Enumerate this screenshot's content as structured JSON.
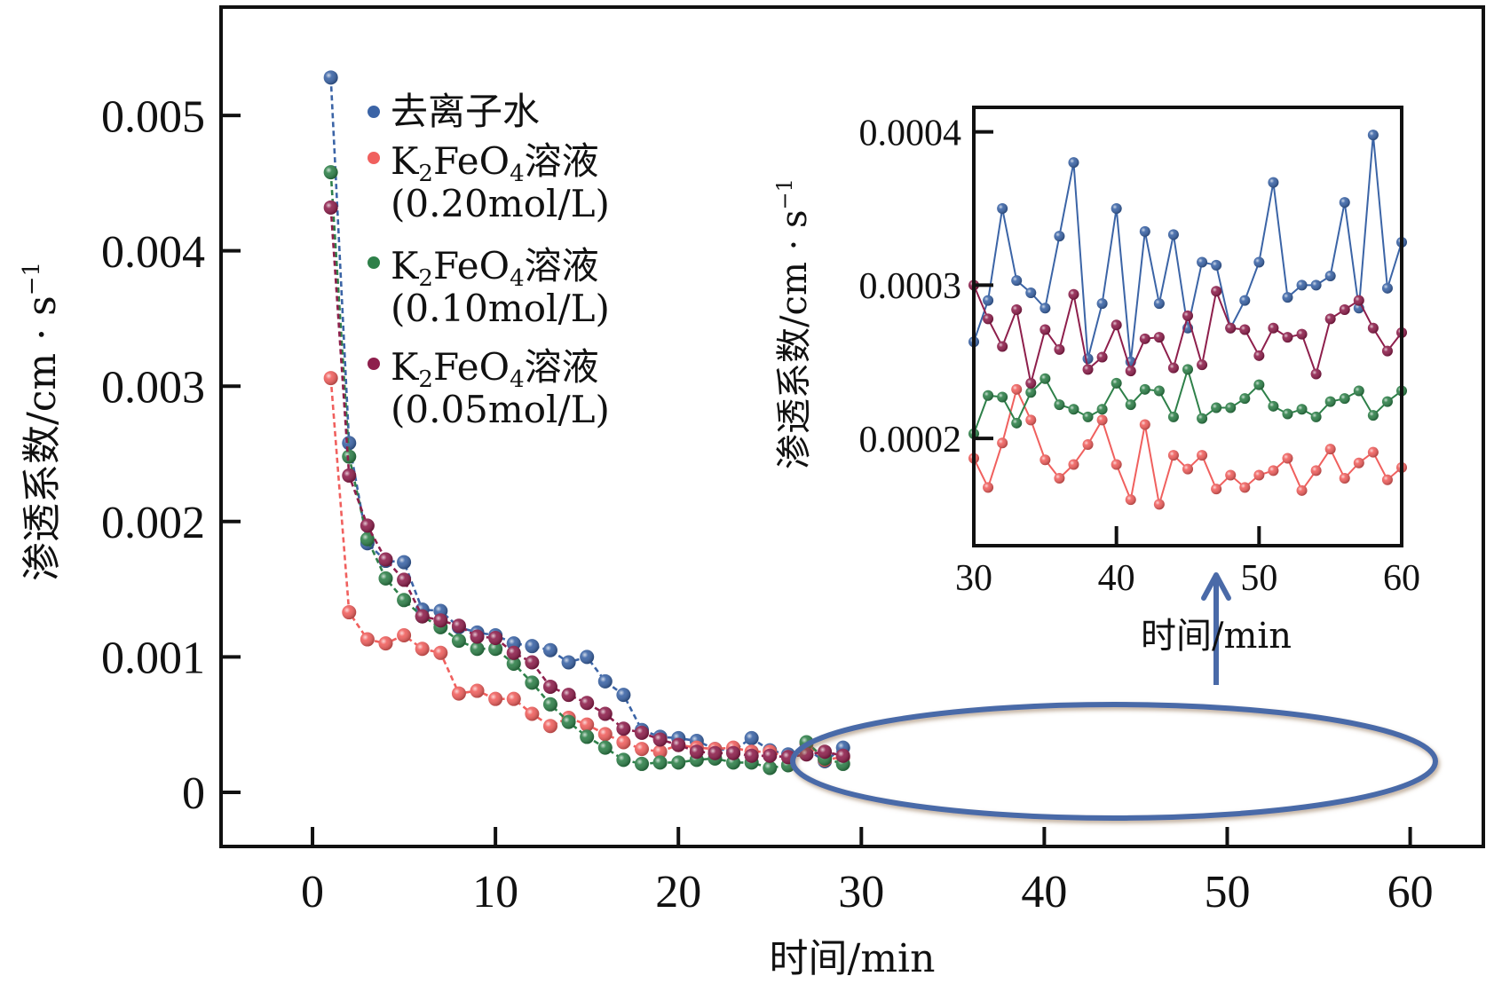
{
  "chart_data": [
    {
      "id": "main",
      "type": "line",
      "title": "",
      "xlabel": "时间/min",
      "ylabel": "渗透系数/cm · s⁻¹",
      "ylabel_parts": {
        "base": "渗透系数/cm · s",
        "sup": "−1"
      },
      "xlim": [
        -5,
        64
      ],
      "ylim": [
        -0.0004,
        0.0058
      ],
      "xticks": [
        0,
        10,
        20,
        30,
        40,
        50,
        60
      ],
      "xtick_labels": [
        "0",
        "10",
        "20",
        "30",
        "40",
        "50",
        "60"
      ],
      "yticks": [
        0,
        0.001,
        0.002,
        0.003,
        0.004,
        0.005
      ],
      "ytick_labels": [
        "0",
        "0.001",
        "0.002",
        "0.003",
        "0.004",
        "0.005"
      ],
      "grid": false,
      "legend_placement": "top-left",
      "annotation": "ellipse highlighting 30–60 min region with arrow pointing to inset",
      "series": [
        {
          "name": "去离子水",
          "name_parts": {
            "main": "去离子水"
          },
          "color": "#3b64a6",
          "line_style": "dashed",
          "x": [
            1,
            2,
            3,
            4,
            5,
            6,
            7,
            8,
            9,
            10,
            11,
            12,
            13,
            14,
            15,
            16,
            17,
            18,
            19,
            20,
            21,
            22,
            23,
            24,
            25,
            26,
            27,
            28,
            29
          ],
          "y": [
            0.00528,
            0.00258,
            0.00184,
            0.00171,
            0.0017,
            0.00135,
            0.00134,
            0.00122,
            0.00118,
            0.00116,
            0.0011,
            0.00108,
            0.00105,
            0.00096,
            0.001,
            0.00082,
            0.00072,
            0.00046,
            0.00041,
            0.0004,
            0.00038,
            0.00032,
            0.00031,
            0.0004,
            0.00031,
            0.00028,
            0.00032,
            0.00023,
            0.00033
          ]
        },
        {
          "name": "K2FeO4溶液 (0.20mol/L)",
          "name_parts": {
            "pre": "K",
            "sub1": "2",
            "mid": "FeO",
            "sub2": "4",
            "post": "溶液",
            "line2": "(0.20mol/L)"
          },
          "color": "#f0605e",
          "line_style": "dashed",
          "x": [
            1,
            2,
            3,
            4,
            5,
            6,
            7,
            8,
            9,
            10,
            11,
            12,
            13,
            14,
            15,
            16,
            17,
            18,
            19,
            20,
            21,
            22,
            23,
            24,
            25,
            26,
            27,
            28,
            29
          ],
          "y": [
            0.00306,
            0.00133,
            0.00113,
            0.0011,
            0.00116,
            0.00106,
            0.00103,
            0.00073,
            0.00075,
            0.00069,
            0.00069,
            0.00058,
            0.00049,
            0.00055,
            0.0005,
            0.00043,
            0.00037,
            0.00032,
            0.0003,
            0.00035,
            0.00033,
            0.00032,
            0.00033,
            0.0003,
            0.0003,
            0.00026,
            0.00036,
            0.00024,
            0.00026
          ]
        },
        {
          "name": "K2FeO4溶液 (0.10mol/L)",
          "name_parts": {
            "pre": "K",
            "sub1": "2",
            "mid": "FeO",
            "sub2": "4",
            "post": "溶液",
            "line2": "(0.10mol/L)"
          },
          "color": "#2e8049",
          "line_style": "dashed",
          "x": [
            1,
            2,
            3,
            4,
            5,
            6,
            7,
            8,
            9,
            10,
            11,
            12,
            13,
            14,
            15,
            16,
            17,
            18,
            19,
            20,
            21,
            22,
            23,
            24,
            25,
            26,
            27,
            28,
            29
          ],
          "y": [
            0.00458,
            0.00248,
            0.00187,
            0.00158,
            0.00142,
            0.0013,
            0.00122,
            0.00112,
            0.00106,
            0.00106,
            0.00095,
            0.00081,
            0.00065,
            0.00052,
            0.00041,
            0.00033,
            0.00024,
            0.00021,
            0.00022,
            0.00022,
            0.00024,
            0.00025,
            0.00022,
            0.00022,
            0.00018,
            0.0002,
            0.00037,
            0.00025,
            0.00021
          ]
        },
        {
          "name": "K2FeO4溶液 (0.05mol/L)",
          "name_parts": {
            "pre": "K",
            "sub1": "2",
            "mid": "FeO",
            "sub2": "4",
            "post": "溶液",
            "line2": "(0.05mol/L)"
          },
          "color": "#8e1f4c",
          "line_style": "dashed",
          "x": [
            1,
            2,
            3,
            4,
            5,
            6,
            7,
            8,
            9,
            10,
            11,
            12,
            13,
            14,
            15,
            16,
            17,
            18,
            19,
            20,
            21,
            22,
            23,
            24,
            25,
            26,
            27,
            28,
            29
          ],
          "y": [
            0.00432,
            0.00234,
            0.00197,
            0.00172,
            0.00157,
            0.0013,
            0.00127,
            0.00123,
            0.00115,
            0.00114,
            0.00103,
            0.00096,
            0.00078,
            0.00072,
            0.00066,
            0.00058,
            0.00047,
            0.00044,
            0.00039,
            0.00035,
            0.0003,
            0.00029,
            0.00029,
            0.00027,
            0.00027,
            0.00026,
            0.00028,
            0.0003,
            0.00027
          ]
        }
      ]
    },
    {
      "id": "inset",
      "type": "line",
      "title": "",
      "xlabel": "时间/min",
      "ylabel": "渗透系数/cm · s⁻¹",
      "ylabel_parts": {
        "base": "渗透系数/cm · s",
        "sup": "−1"
      },
      "xlim": [
        30,
        60
      ],
      "ylim": [
        0.00013,
        0.000416
      ],
      "xticks": [
        30,
        40,
        50,
        60
      ],
      "xtick_labels": [
        "30",
        "40",
        "50",
        "60"
      ],
      "yticks": [
        0.0002,
        0.0003,
        0.0004
      ],
      "ytick_labels": [
        "0.0002",
        "0.0003",
        "0.0004"
      ],
      "grid": false,
      "series": [
        {
          "name": "去离子水",
          "color": "#3b64a6",
          "x": [
            30,
            31,
            32,
            33,
            34,
            35,
            36,
            37,
            38,
            39,
            40,
            41,
            42,
            43,
            44,
            45,
            46,
            47,
            48,
            49,
            50,
            51,
            52,
            53,
            54,
            55,
            56,
            57,
            58,
            59,
            60
          ],
          "y": [
            0.000263,
            0.00029,
            0.00035,
            0.000303,
            0.000295,
            0.000285,
            0.000332,
            0.00038,
            0.000252,
            0.000288,
            0.00035,
            0.00025,
            0.000335,
            0.000288,
            0.000333,
            0.000272,
            0.000315,
            0.000313,
            0.000272,
            0.00029,
            0.000315,
            0.000367,
            0.000292,
            0.0003,
            0.0003,
            0.000306,
            0.000354,
            0.000285,
            0.000398,
            0.000298,
            0.000328
          ]
        },
        {
          "name": "K2FeO4溶液 (0.20mol/L)",
          "color": "#f0605e",
          "x": [
            30,
            31,
            32,
            33,
            34,
            35,
            36,
            37,
            38,
            39,
            40,
            41,
            42,
            43,
            44,
            45,
            46,
            47,
            48,
            49,
            50,
            51,
            52,
            53,
            54,
            55,
            56,
            57,
            58,
            59,
            60
          ],
          "y": [
            0.000187,
            0.000168,
            0.000197,
            0.000232,
            0.000212,
            0.000186,
            0.000174,
            0.000183,
            0.000196,
            0.000212,
            0.000183,
            0.00016,
            0.000209,
            0.000157,
            0.000189,
            0.00018,
            0.000189,
            0.000167,
            0.000176,
            0.000168,
            0.000176,
            0.000179,
            0.000187,
            0.000166,
            0.000179,
            0.000193,
            0.000174,
            0.000184,
            0.000191,
            0.000173,
            0.000181
          ]
        },
        {
          "name": "K2FeO4溶液 (0.10mol/L)",
          "color": "#2e8049",
          "x": [
            30,
            31,
            32,
            33,
            34,
            35,
            36,
            37,
            38,
            39,
            40,
            41,
            42,
            43,
            44,
            45,
            46,
            47,
            48,
            49,
            50,
            51,
            52,
            53,
            54,
            55,
            56,
            57,
            58,
            59,
            60
          ],
          "y": [
            0.000203,
            0.000228,
            0.000227,
            0.00021,
            0.00023,
            0.000239,
            0.000222,
            0.000219,
            0.000214,
            0.000219,
            0.000236,
            0.000222,
            0.000232,
            0.000231,
            0.000214,
            0.000245,
            0.000213,
            0.00022,
            0.00022,
            0.000226,
            0.000235,
            0.000221,
            0.000216,
            0.000219,
            0.000214,
            0.000224,
            0.000226,
            0.000231,
            0.000215,
            0.000224,
            0.000231
          ]
        },
        {
          "name": "K2FeO4溶液 (0.05mol/L)",
          "color": "#8e1f4c",
          "x": [
            30,
            31,
            32,
            33,
            34,
            35,
            36,
            37,
            38,
            39,
            40,
            41,
            42,
            43,
            44,
            45,
            46,
            47,
            48,
            49,
            50,
            51,
            52,
            53,
            54,
            55,
            56,
            57,
            58,
            59,
            60
          ],
          "y": [
            0.0003,
            0.000278,
            0.00026,
            0.000284,
            0.000236,
            0.000271,
            0.000258,
            0.000294,
            0.000245,
            0.000253,
            0.000274,
            0.000244,
            0.000265,
            0.000266,
            0.000246,
            0.00028,
            0.000248,
            0.000296,
            0.000272,
            0.000271,
            0.000254,
            0.000272,
            0.000266,
            0.000268,
            0.000242,
            0.000278,
            0.000284,
            0.00029,
            0.000272,
            0.000257,
            0.000269
          ]
        }
      ]
    }
  ],
  "annotation_color": "#4a6aa8"
}
